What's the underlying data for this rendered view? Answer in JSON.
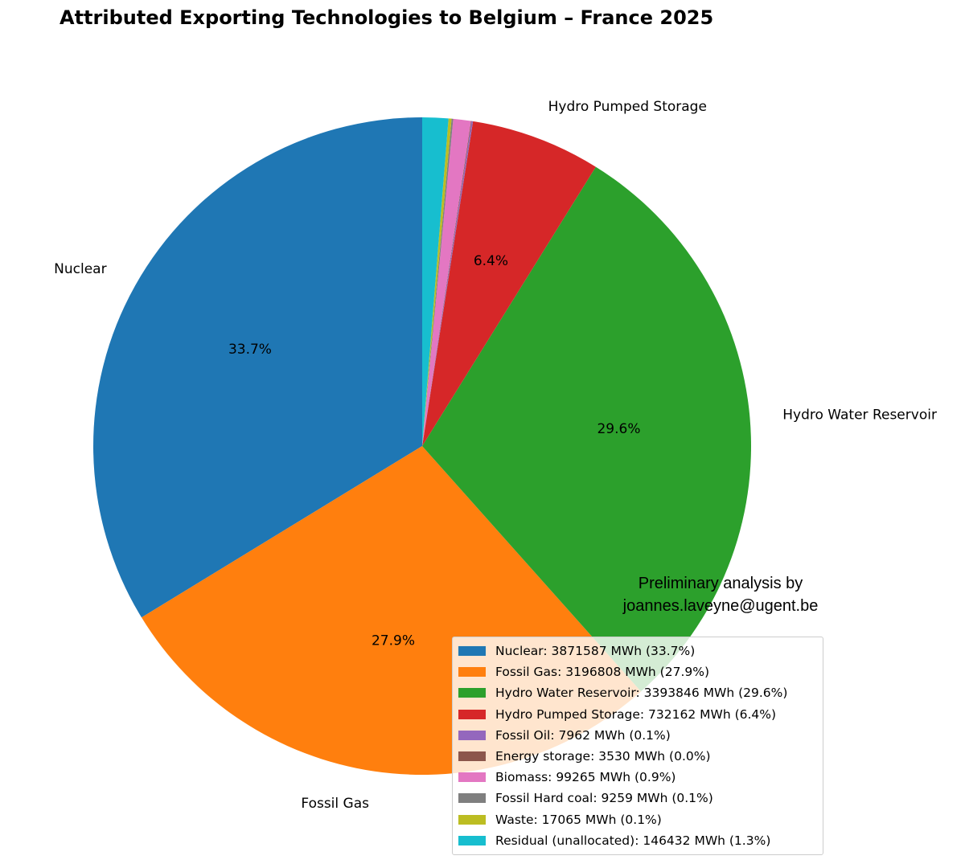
{
  "chart_data": {
    "type": "pie",
    "title": "Attributed Exporting Technologies to Belgium – France 2025",
    "start_angle_deg": 90,
    "direction": "counterclockwise",
    "unit": "MWh",
    "slices": [
      {
        "name": "Nuclear",
        "value": 3871587,
        "pct_label": "33.7%",
        "color": "#1f77b4",
        "outer_label": "Nuclear",
        "show_pct": true,
        "legend": "Nuclear: 3871587 MWh (33.7%)"
      },
      {
        "name": "Fossil Gas",
        "value": 3196808,
        "pct_label": "27.9%",
        "color": "#ff7f0e",
        "outer_label": "Fossil Gas",
        "show_pct": true,
        "legend": "Fossil Gas: 3196808 MWh (27.9%)"
      },
      {
        "name": "Hydro Water Reservoir",
        "value": 3393846,
        "pct_label": "29.6%",
        "color": "#2ca02c",
        "outer_label": "Hydro Water Reservoir",
        "show_pct": true,
        "legend": "Hydro Water Reservoir: 3393846 MWh (29.6%)"
      },
      {
        "name": "Hydro Pumped Storage",
        "value": 732162,
        "pct_label": "6.4%",
        "color": "#d62728",
        "outer_label": "Hydro Pumped Storage",
        "show_pct": true,
        "legend": "Hydro Pumped Storage: 732162 MWh (6.4%)"
      },
      {
        "name": "Fossil Oil",
        "value": 7962,
        "pct_label": "0.1%",
        "color": "#9467bd",
        "outer_label": "",
        "show_pct": false,
        "legend": "Fossil Oil: 7962 MWh (0.1%)"
      },
      {
        "name": "Energy storage",
        "value": 3530,
        "pct_label": "0.0%",
        "color": "#8c564b",
        "outer_label": "",
        "show_pct": false,
        "legend": "Energy storage: 3530 MWh (0.0%)"
      },
      {
        "name": "Biomass",
        "value": 99265,
        "pct_label": "0.9%",
        "color": "#e377c2",
        "outer_label": "",
        "show_pct": false,
        "legend": "Biomass: 99265 MWh (0.9%)"
      },
      {
        "name": "Fossil Hard coal",
        "value": 9259,
        "pct_label": "0.1%",
        "color": "#7f7f7f",
        "outer_label": "",
        "show_pct": false,
        "legend": "Fossil Hard coal: 9259 MWh (0.1%)"
      },
      {
        "name": "Waste",
        "value": 17065,
        "pct_label": "0.1%",
        "color": "#bcbd22",
        "outer_label": "",
        "show_pct": false,
        "legend": "Waste: 17065 MWh (0.1%)"
      },
      {
        "name": "Residual (unallocated)",
        "value": 146432,
        "pct_label": "1.3%",
        "color": "#17becf",
        "outer_label": "",
        "show_pct": false,
        "legend": "Residual (unallocated): 146432 MWh (1.3%)"
      }
    ],
    "legend_position": "lower-right",
    "annotation": "Preliminary analysis by joannes.laveyne@ugent.be"
  },
  "watermark": {
    "line1": "Preliminary analysis by",
    "line2": "joannes.laveyne@ugent.be"
  }
}
